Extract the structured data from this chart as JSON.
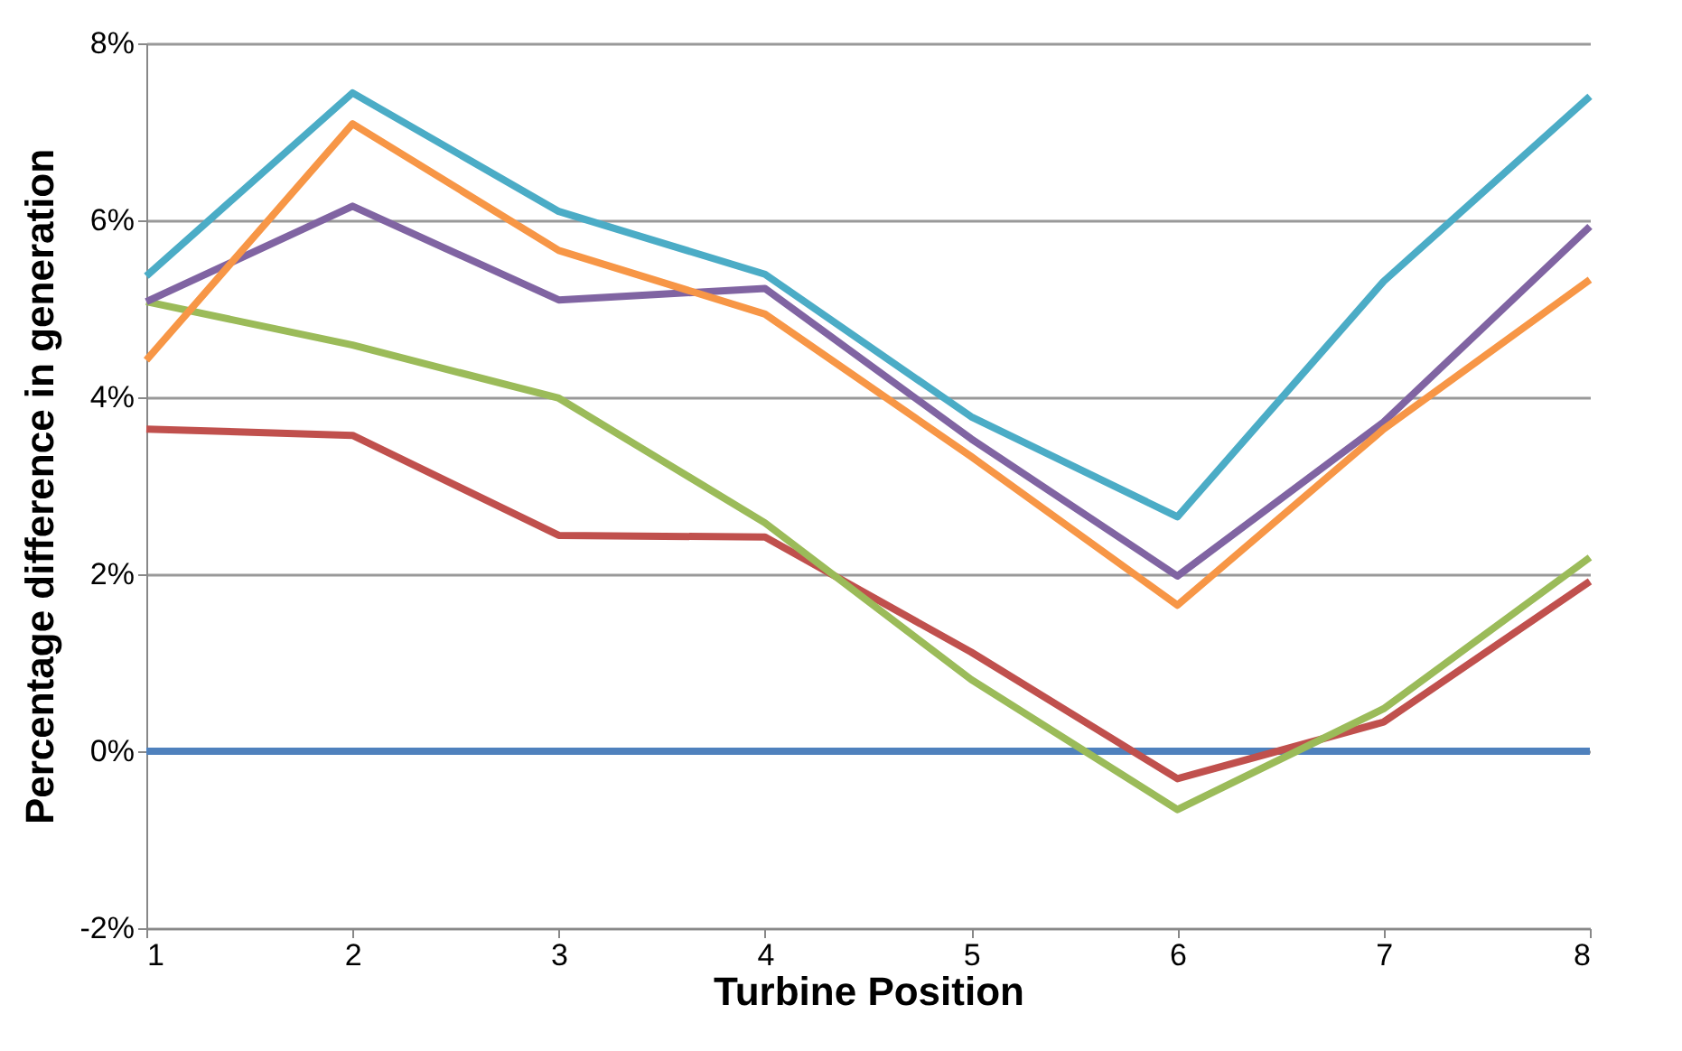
{
  "chart_data": {
    "type": "line",
    "xlabel": "Turbine Position",
    "ylabel": "Percentage difference in generation",
    "x": [
      1,
      2,
      3,
      4,
      5,
      6,
      7,
      8
    ],
    "series": [
      {
        "color": "#4f81bd",
        "values": [
          0,
          0,
          0,
          0,
          0,
          0,
          0,
          0
        ]
      },
      {
        "color": "#c0504d",
        "values": [
          3.64,
          3.57,
          2.44,
          2.42,
          1.12,
          -0.31,
          0.33,
          1.92
        ]
      },
      {
        "color": "#9bbb59",
        "values": [
          5.08,
          4.59,
          3.99,
          2.58,
          0.81,
          -0.66,
          0.48,
          2.19
        ]
      },
      {
        "color": "#8064a2",
        "values": [
          5.08,
          6.16,
          5.1,
          5.23,
          3.53,
          1.98,
          3.72,
          5.93
        ]
      },
      {
        "color": "#4bacc6",
        "values": [
          5.37,
          7.44,
          6.1,
          5.39,
          3.78,
          2.65,
          5.31,
          7.4
        ]
      },
      {
        "color": "#f79646",
        "values": [
          4.42,
          7.09,
          5.66,
          4.94,
          3.33,
          1.65,
          3.64,
          5.33
        ]
      }
    ],
    "xlim": [
      1,
      8
    ],
    "xticks": [
      1,
      2,
      3,
      4,
      5,
      6,
      7,
      8
    ],
    "ylim": [
      -2,
      8
    ],
    "yticks": [
      {
        "value": -2,
        "label": "-2%"
      },
      {
        "value": 0,
        "label": "0%"
      },
      {
        "value": 2,
        "label": "2%"
      },
      {
        "value": 4,
        "label": "4%"
      },
      {
        "value": 6,
        "label": "6%"
      },
      {
        "value": 8,
        "label": "8%"
      }
    ],
    "grid": "y",
    "legend": false,
    "marker": "none",
    "line_style": "solid"
  }
}
